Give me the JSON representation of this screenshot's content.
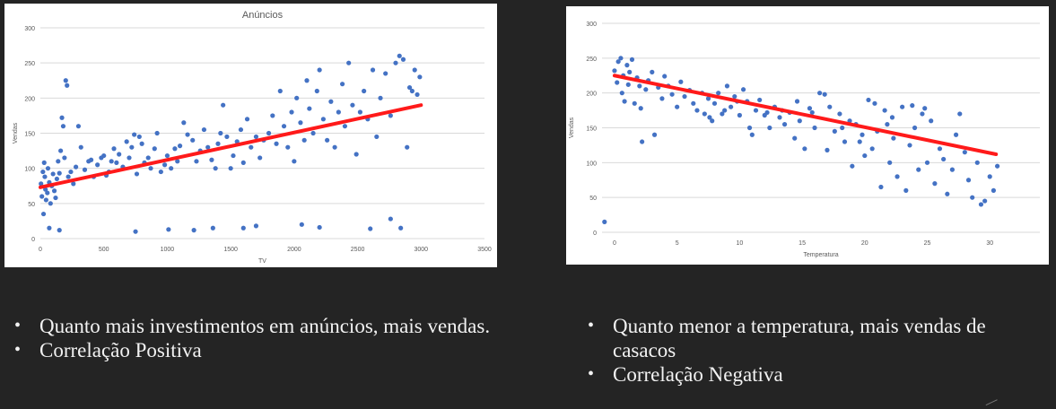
{
  "chart_data": [
    {
      "type": "scatter",
      "title": "Anúncios",
      "xlabel": "TV",
      "ylabel": "Vendas",
      "xlim": [
        0,
        3500
      ],
      "ylim": [
        0,
        300
      ],
      "xticks": [
        "0",
        "500",
        "1000",
        "1500",
        "2000",
        "2500",
        "3000",
        "3500"
      ],
      "yticks": [
        "0",
        "50",
        "100",
        "150",
        "200",
        "250",
        "300"
      ],
      "grid": true,
      "points": [
        [
          5,
          78
        ],
        [
          12,
          60
        ],
        [
          20,
          95
        ],
        [
          25,
          35
        ],
        [
          30,
          108
        ],
        [
          35,
          88
        ],
        [
          40,
          70
        ],
        [
          45,
          55
        ],
        [
          55,
          65
        ],
        [
          60,
          100
        ],
        [
          70,
          80
        ],
        [
          80,
          50
        ],
        [
          90,
          75
        ],
        [
          100,
          92
        ],
        [
          110,
          68
        ],
        [
          120,
          58
        ],
        [
          130,
          85
        ],
        [
          140,
          110
        ],
        [
          150,
          93
        ],
        [
          160,
          125
        ],
        [
          170,
          172
        ],
        [
          180,
          160
        ],
        [
          190,
          115
        ],
        [
          200,
          225
        ],
        [
          210,
          218
        ],
        [
          220,
          88
        ],
        [
          240,
          95
        ],
        [
          260,
          78
        ],
        [
          280,
          102
        ],
        [
          300,
          160
        ],
        [
          320,
          130
        ],
        [
          350,
          98
        ],
        [
          380,
          110
        ],
        [
          400,
          112
        ],
        [
          420,
          88
        ],
        [
          450,
          105
        ],
        [
          480,
          115
        ],
        [
          500,
          118
        ],
        [
          520,
          90
        ],
        [
          540,
          95
        ],
        [
          560,
          110
        ],
        [
          580,
          128
        ],
        [
          600,
          108
        ],
        [
          620,
          120
        ],
        [
          650,
          102
        ],
        [
          680,
          138
        ],
        [
          700,
          115
        ],
        [
          720,
          130
        ],
        [
          740,
          148
        ],
        [
          760,
          92
        ],
        [
          780,
          145
        ],
        [
          800,
          135
        ],
        [
          820,
          108
        ],
        [
          850,
          115
        ],
        [
          870,
          100
        ],
        [
          900,
          128
        ],
        [
          920,
          150
        ],
        [
          950,
          95
        ],
        [
          980,
          105
        ],
        [
          1000,
          118
        ],
        [
          1030,
          100
        ],
        [
          1060,
          128
        ],
        [
          1080,
          110
        ],
        [
          1100,
          132
        ],
        [
          1130,
          165
        ],
        [
          1160,
          148
        ],
        [
          1200,
          140
        ],
        [
          1230,
          110
        ],
        [
          1260,
          125
        ],
        [
          1290,
          155
        ],
        [
          1320,
          130
        ],
        [
          1350,
          112
        ],
        [
          1380,
          100
        ],
        [
          1400,
          135
        ],
        [
          1420,
          150
        ],
        [
          1440,
          190
        ],
        [
          1470,
          145
        ],
        [
          1500,
          100
        ],
        [
          1520,
          118
        ],
        [
          1550,
          138
        ],
        [
          1580,
          155
        ],
        [
          1600,
          108
        ],
        [
          1630,
          170
        ],
        [
          1660,
          130
        ],
        [
          1700,
          145
        ],
        [
          1730,
          115
        ],
        [
          1760,
          140
        ],
        [
          1800,
          150
        ],
        [
          1830,
          175
        ],
        [
          1860,
          135
        ],
        [
          1890,
          210
        ],
        [
          1920,
          160
        ],
        [
          1950,
          130
        ],
        [
          1980,
          180
        ],
        [
          2000,
          110
        ],
        [
          2020,
          200
        ],
        [
          2050,
          165
        ],
        [
          2080,
          140
        ],
        [
          2100,
          225
        ],
        [
          2120,
          185
        ],
        [
          2150,
          150
        ],
        [
          2180,
          210
        ],
        [
          2200,
          240
        ],
        [
          2230,
          170
        ],
        [
          2260,
          140
        ],
        [
          2290,
          195
        ],
        [
          2320,
          130
        ],
        [
          2350,
          180
        ],
        [
          2380,
          220
        ],
        [
          2400,
          160
        ],
        [
          2430,
          250
        ],
        [
          2460,
          190
        ],
        [
          2490,
          120
        ],
        [
          2520,
          180
        ],
        [
          2550,
          210
        ],
        [
          2580,
          170
        ],
        [
          2620,
          240
        ],
        [
          2650,
          145
        ],
        [
          2680,
          200
        ],
        [
          2720,
          235
        ],
        [
          2760,
          175
        ],
        [
          2800,
          250
        ],
        [
          2830,
          260
        ],
        [
          2860,
          255
        ],
        [
          2890,
          130
        ],
        [
          2910,
          215
        ],
        [
          2930,
          210
        ],
        [
          2950,
          240
        ],
        [
          2970,
          205
        ],
        [
          2990,
          230
        ],
        [
          70,
          15
        ],
        [
          150,
          12
        ],
        [
          750,
          10
        ],
        [
          1010,
          13
        ],
        [
          1210,
          12
        ],
        [
          1360,
          15
        ],
        [
          1600,
          15
        ],
        [
          1700,
          18
        ],
        [
          2060,
          20
        ],
        [
          2200,
          16
        ],
        [
          2600,
          14
        ],
        [
          2760,
          28
        ],
        [
          2840,
          15
        ]
      ],
      "trend": [
        [
          0,
          73
        ],
        [
          3000,
          190
        ]
      ]
    },
    {
      "type": "scatter",
      "title": "",
      "xlabel": "Temperatura",
      "ylabel": "Vendas",
      "xlim": [
        -1,
        34
      ],
      "ylim": [
        0,
        300
      ],
      "xticks": [
        "0",
        "5",
        "10",
        "15",
        "20",
        "25",
        "30"
      ],
      "yticks": [
        "0",
        "50",
        "100",
        "150",
        "200",
        "250",
        "300"
      ],
      "grid": true,
      "points": [
        [
          -0.8,
          15
        ],
        [
          0,
          232
        ],
        [
          0.2,
          215
        ],
        [
          0.3,
          245
        ],
        [
          0.5,
          250
        ],
        [
          0.6,
          200
        ],
        [
          0.7,
          225
        ],
        [
          0.8,
          188
        ],
        [
          1,
          240
        ],
        [
          1.1,
          212
        ],
        [
          1.2,
          230
        ],
        [
          1.4,
          248
        ],
        [
          1.6,
          185
        ],
        [
          1.8,
          222
        ],
        [
          2,
          210
        ],
        [
          2.1,
          178
        ],
        [
          2.2,
          130
        ],
        [
          2.5,
          205
        ],
        [
          2.7,
          218
        ],
        [
          3,
          230
        ],
        [
          3.2,
          140
        ],
        [
          3.5,
          208
        ],
        [
          3.8,
          192
        ],
        [
          4,
          224
        ],
        [
          4.3,
          210
        ],
        [
          4.6,
          198
        ],
        [
          5,
          180
        ],
        [
          5.3,
          216
        ],
        [
          5.6,
          195
        ],
        [
          6,
          204
        ],
        [
          6.3,
          185
        ],
        [
          6.6,
          175
        ],
        [
          7,
          200
        ],
        [
          7.2,
          170
        ],
        [
          7.5,
          192
        ],
        [
          7.8,
          160
        ],
        [
          8,
          185
        ],
        [
          8.3,
          200
        ],
        [
          8.6,
          170
        ],
        [
          9,
          210
        ],
        [
          9.3,
          180
        ],
        [
          9.6,
          195
        ],
        [
          10,
          168
        ],
        [
          10.3,
          205
        ],
        [
          10.6,
          188
        ],
        [
          11,
          140
        ],
        [
          11.3,
          175
        ],
        [
          11.6,
          190
        ],
        [
          12,
          168
        ],
        [
          12.4,
          150
        ],
        [
          12.8,
          180
        ],
        [
          13.2,
          165
        ],
        [
          13.6,
          155
        ],
        [
          14,
          172
        ],
        [
          14.4,
          135
        ],
        [
          14.8,
          160
        ],
        [
          15.2,
          120
        ],
        [
          15.6,
          178
        ],
        [
          16,
          150
        ],
        [
          16.4,
          200
        ],
        [
          16.8,
          198
        ],
        [
          17.2,
          180
        ],
        [
          17.6,
          145
        ],
        [
          18,
          170
        ],
        [
          18.4,
          130
        ],
        [
          18.8,
          160
        ],
        [
          19,
          95
        ],
        [
          19.3,
          155
        ],
        [
          19.6,
          130
        ],
        [
          20,
          110
        ],
        [
          20.3,
          190
        ],
        [
          20.6,
          120
        ],
        [
          21,
          145
        ],
        [
          21.3,
          65
        ],
        [
          21.6,
          175
        ],
        [
          22,
          100
        ],
        [
          22.3,
          135
        ],
        [
          22.6,
          80
        ],
        [
          23,
          180
        ],
        [
          23.3,
          60
        ],
        [
          23.6,
          125
        ],
        [
          24,
          150
        ],
        [
          24.3,
          90
        ],
        [
          24.6,
          170
        ],
        [
          25,
          100
        ],
        [
          25.3,
          160
        ],
        [
          25.6,
          70
        ],
        [
          26,
          120
        ],
        [
          26.3,
          105
        ],
        [
          26.6,
          55
        ],
        [
          27,
          90
        ],
        [
          27.3,
          140
        ],
        [
          27.6,
          170
        ],
        [
          28,
          115
        ],
        [
          28.3,
          75
        ],
        [
          28.6,
          50
        ],
        [
          29,
          100
        ],
        [
          29.3,
          40
        ],
        [
          29.6,
          45
        ],
        [
          30,
          80
        ],
        [
          30.3,
          60
        ],
        [
          30.6,
          95
        ],
        [
          24.8,
          178
        ],
        [
          23.8,
          182
        ],
        [
          22.2,
          165
        ],
        [
          21.8,
          155
        ],
        [
          20.8,
          185
        ],
        [
          19.8,
          140
        ],
        [
          18.2,
          150
        ],
        [
          17,
          118
        ],
        [
          15.8,
          172
        ],
        [
          14.6,
          188
        ],
        [
          13.4,
          175
        ],
        [
          12.2,
          172
        ],
        [
          10.8,
          150
        ],
        [
          9.8,
          188
        ],
        [
          8.8,
          175
        ],
        [
          7.6,
          165
        ]
      ],
      "trend": [
        [
          0,
          225
        ],
        [
          30.5,
          112
        ]
      ]
    }
  ],
  "left_bullets": {
    "item1": "Quanto mais investimentos em anúncios, mais vendas.",
    "item2": "Correlação Positiva"
  },
  "right_bullets": {
    "item1": "Quanto menor a temperatura, mais vendas de casacos",
    "item2": "Correlação Negativa"
  },
  "colors": {
    "point": "#4472c4",
    "trend": "#ff1a1a",
    "grid": "#d9d9d9",
    "background": "#242424",
    "text": "#f2f2f2"
  }
}
